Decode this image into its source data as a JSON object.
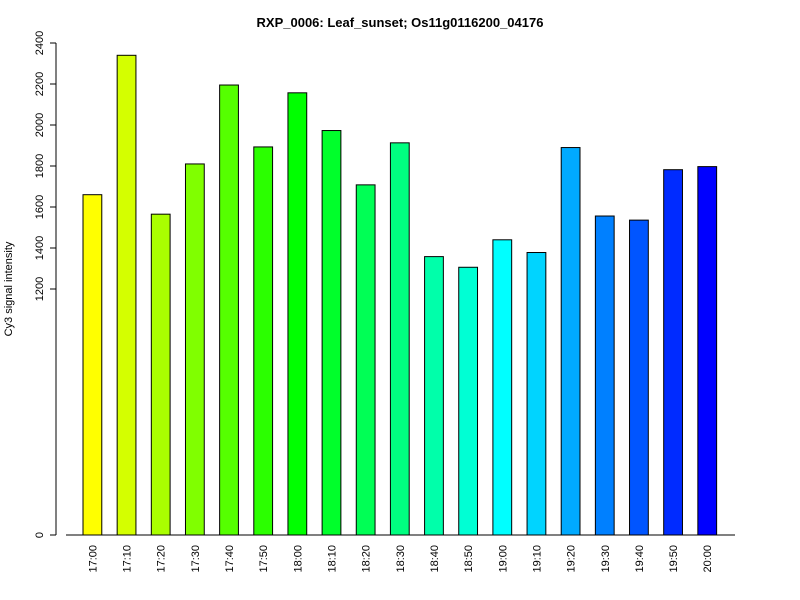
{
  "chart_data": {
    "type": "bar",
    "title": "RXP_0006: Leaf_sunset; Os11g0116200_04176",
    "xlabel": "",
    "ylabel": "Cy3 signal intensity",
    "ylim": [
      0,
      2400
    ],
    "yticks": [
      0,
      1200,
      1400,
      1600,
      1800,
      2000,
      2200,
      2400
    ],
    "categories": [
      "17:00",
      "17:10",
      "17:20",
      "17:30",
      "17:40",
      "17:50",
      "18:00",
      "18:10",
      "18:20",
      "18:30",
      "18:40",
      "18:50",
      "19:00",
      "19:10",
      "19:20",
      "19:30",
      "19:40",
      "19:50",
      "20:00"
    ],
    "values": [
      1660,
      2340,
      1565,
      1810,
      2195,
      1893,
      2157,
      1973,
      1708,
      1913,
      1358,
      1306,
      1440,
      1378,
      1890,
      1556,
      1536,
      1782,
      1797
    ],
    "colors": [
      "#ffff00",
      "#d4ff00",
      "#aaff00",
      "#80ff00",
      "#55ff00",
      "#2bff00",
      "#00ff00",
      "#00ff2b",
      "#00ff55",
      "#00ff80",
      "#00ffaa",
      "#00ffd4",
      "#00ffff",
      "#00d4ff",
      "#00aaff",
      "#0080ff",
      "#0055ff",
      "#002bff",
      "#0000ff"
    ],
    "grid": false,
    "legend": "none"
  }
}
